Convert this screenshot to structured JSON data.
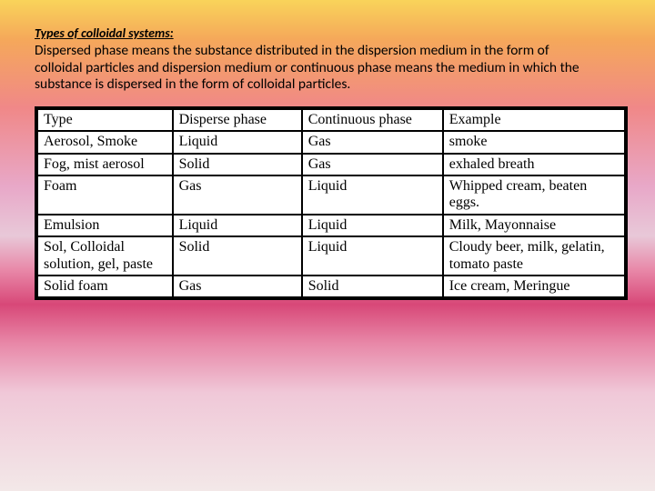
{
  "heading": "Types of colloidal systems:",
  "description": "Dispersed  phase means the substance distributed in the dispersion medium in the form of colloidal particles and dispersion medium or continuous phase means the medium in which the substance is dispersed in the form of colloidal particles.",
  "table": {
    "columns": [
      "Type",
      "Disperse phase",
      "Continuous phase",
      "Example"
    ],
    "rows": [
      [
        "Aerosol, Smoke",
        "Liquid",
        "Gas",
        "smoke"
      ],
      [
        "Fog, mist aerosol",
        "Solid",
        "Gas",
        "exhaled breath"
      ],
      [
        "Foam",
        "Gas",
        "Liquid",
        "Whipped cream, beaten eggs."
      ],
      [
        "Emulsion",
        "Liquid",
        "Liquid",
        "Milk, Mayonnaise"
      ],
      [
        "Sol, Colloidal solution, gel, paste",
        "Solid",
        "Liquid",
        "Cloudy beer, milk, gelatin, tomato paste"
      ],
      [
        "Solid foam",
        "Gas",
        "Solid",
        "Ice cream, Meringue"
      ]
    ],
    "col_widths_pct": [
      23,
      22,
      24,
      31
    ],
    "font_family_header": "Times New Roman",
    "font_family_body": "Times New Roman",
    "font_size_pt": 16,
    "border_color": "#000000",
    "background_color": "#ffffff"
  }
}
